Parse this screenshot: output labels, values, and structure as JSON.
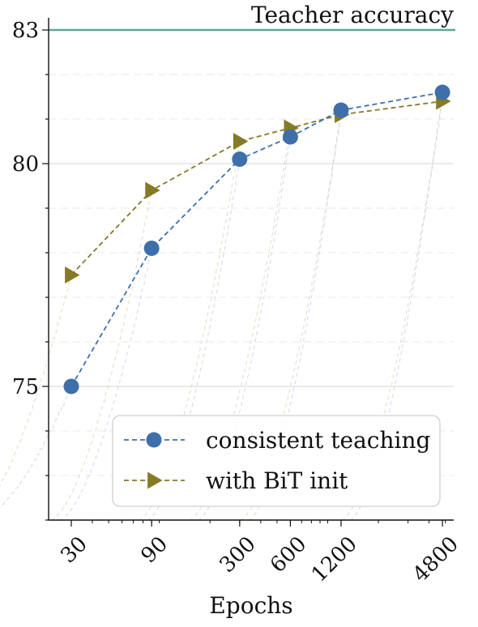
{
  "chart_data": {
    "type": "line",
    "xlabel": "Epochs",
    "ylabel": "",
    "x_scale": "log",
    "x_ticks": [
      30,
      90,
      300,
      600,
      1200,
      4800
    ],
    "x_tick_labels": [
      "30",
      "90",
      "300",
      "600",
      "1200",
      "4800"
    ],
    "xlim": [
      22,
      5600
    ],
    "y_ticks": [
      75,
      80,
      83
    ],
    "y_tick_labels": [
      "75",
      "80",
      "83"
    ],
    "ylim": [
      72,
      83
    ],
    "grid": true,
    "legend_position": "lower-right",
    "reference_line": {
      "label": "Teacher accuracy",
      "y": 83,
      "color": "#5aa89a"
    },
    "series": [
      {
        "name": "consistent teaching",
        "color": "#3f6faa",
        "marker": "circle",
        "x": [
          30,
          90,
          300,
          600,
          1200,
          4800
        ],
        "values": [
          75.0,
          78.1,
          80.1,
          80.6,
          81.2,
          81.6
        ]
      },
      {
        "name": "with BiT init",
        "color": "#857a26",
        "marker": "triangle-right",
        "x": [
          30,
          90,
          300,
          600,
          1200,
          4800
        ],
        "values": [
          77.5,
          79.4,
          80.5,
          80.8,
          81.1,
          81.4
        ]
      }
    ]
  }
}
